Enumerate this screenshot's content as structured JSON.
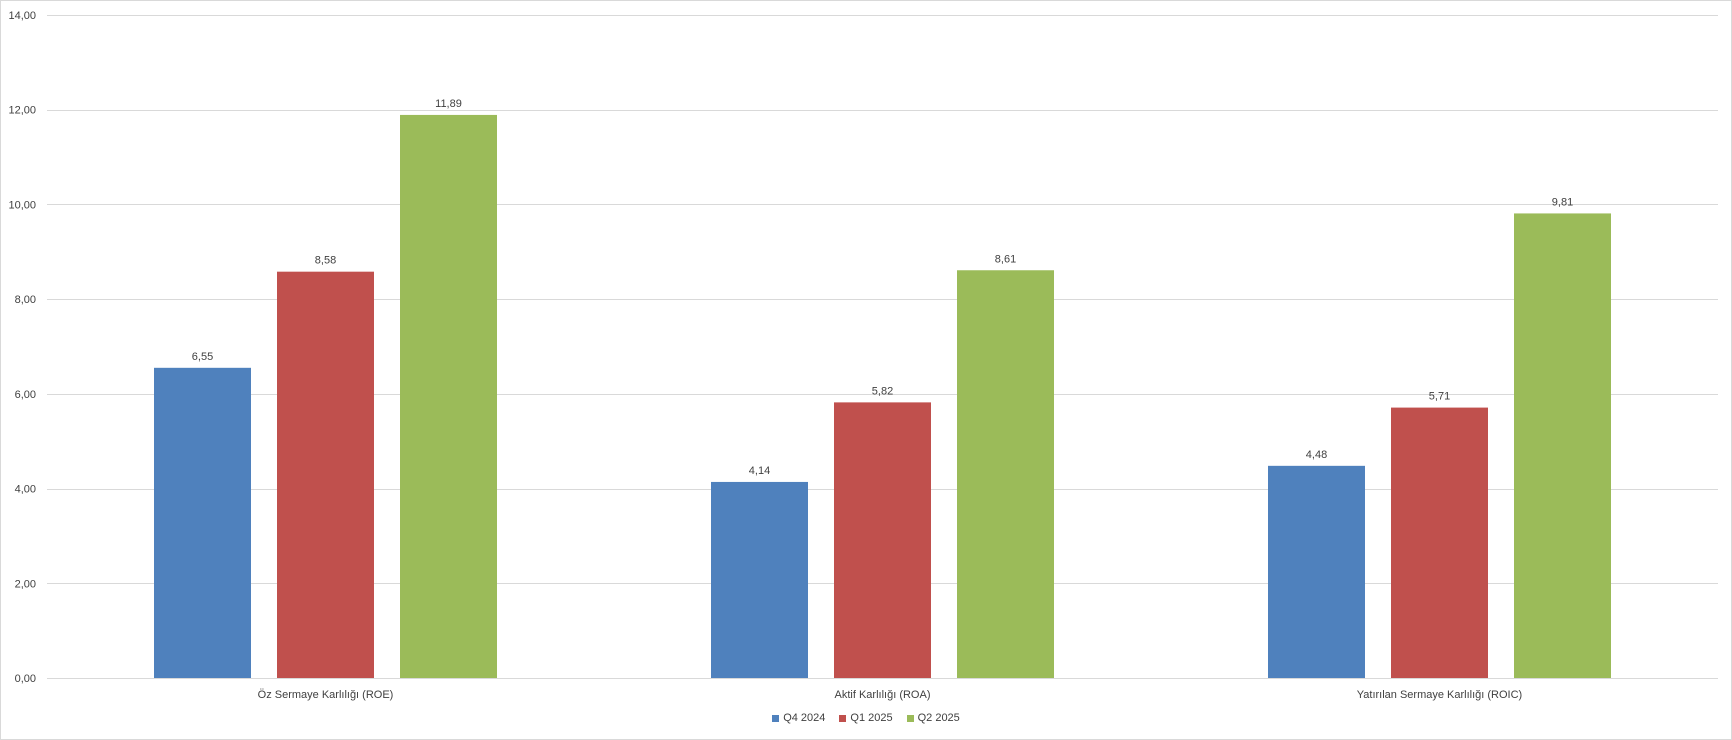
{
  "chart_data": {
    "type": "bar",
    "categories": [
      "Öz Sermaye Karlılığı (ROE)",
      "Aktif Karlılığı (ROA)",
      "Yatırılan Sermaye Karlılığı (ROIC)"
    ],
    "series": [
      {
        "name": "Q4 2024",
        "color": "#4F81BD",
        "values": [
          6.55,
          4.14,
          4.48
        ],
        "labels": [
          "6,55",
          "4,14",
          "4,48"
        ]
      },
      {
        "name": "Q1 2025",
        "color": "#C0504D",
        "values": [
          8.58,
          5.82,
          5.71
        ],
        "labels": [
          "8,58",
          "5,82",
          "5,71"
        ]
      },
      {
        "name": "Q2 2025",
        "color": "#9BBB59",
        "values": [
          11.89,
          8.61,
          9.81
        ],
        "labels": [
          "11,89",
          "8,61",
          "9,81"
        ]
      }
    ],
    "ylim": [
      0,
      14
    ],
    "yticks": [
      0,
      2,
      4,
      6,
      8,
      10,
      12,
      14
    ],
    "ytick_labels": [
      "0,00",
      "2,00",
      "4,00",
      "6,00",
      "8,00",
      "10,00",
      "12,00",
      "14,00"
    ],
    "grid": true,
    "legend_position": "bottom",
    "gridline_color": "#d9d9d9"
  }
}
